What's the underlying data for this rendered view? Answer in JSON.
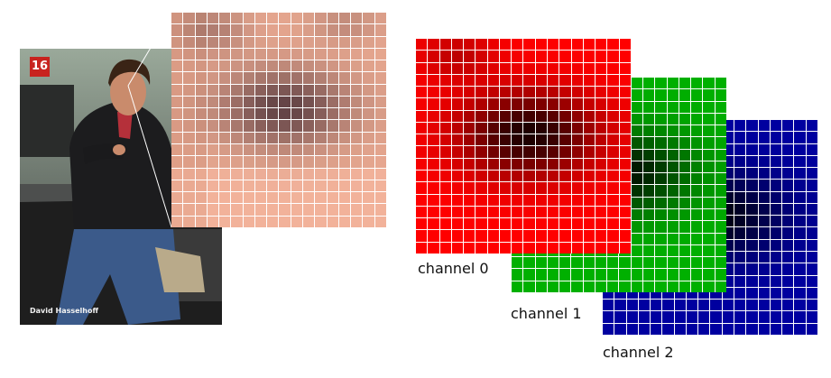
{
  "photo": {
    "badge": "16",
    "caption": "David Hasselhoff"
  },
  "channels": [
    {
      "label": "channel 0",
      "color": "#ff0000"
    },
    {
      "label": "channel 1",
      "color": "#00b000"
    },
    {
      "label": "channel 2",
      "color": "#0000a0"
    }
  ],
  "zoom_grid": {
    "rows": 18,
    "cols": 18,
    "base_color": "#e8a890",
    "dark_color": "#4a3038"
  }
}
